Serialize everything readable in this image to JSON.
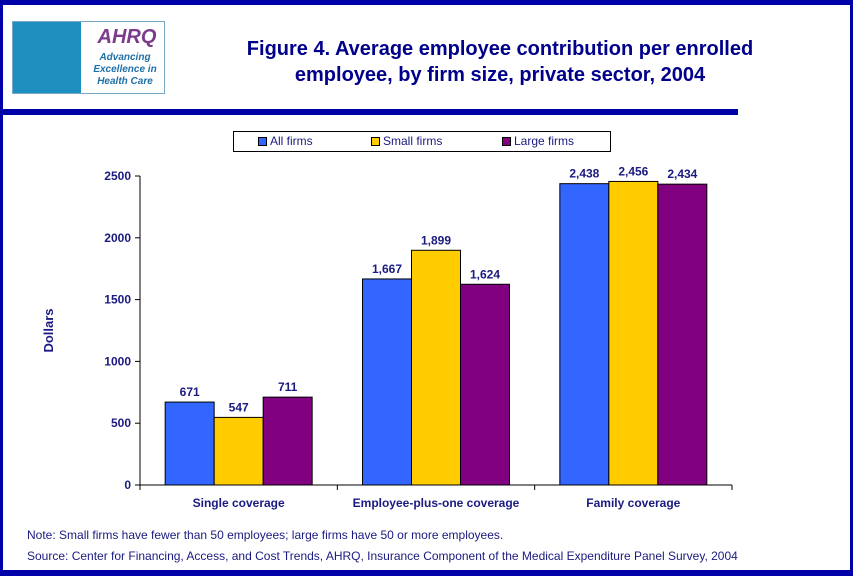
{
  "header": {
    "title_line1": "Figure 4. Average employee contribution per enrolled",
    "title_line2": "employee, by firm size, private sector, 2004",
    "logo": {
      "brand": "AHRQ",
      "tagline": "Advancing Excellence in Health Care"
    }
  },
  "chart_data": {
    "type": "bar",
    "title": "Figure 4. Average employee contribution per enrolled employee, by firm size, private sector, 2004",
    "categories": [
      "Single coverage",
      "Employee-plus-one coverage",
      "Family coverage"
    ],
    "series": [
      {
        "name": "All firms",
        "color": "#3366FF",
        "values": [
          671,
          1667,
          2438
        ],
        "labels": [
          "671",
          "1,667",
          "2,438"
        ]
      },
      {
        "name": "Small firms",
        "color": "#FFCC00",
        "values": [
          547,
          1899,
          2456
        ],
        "labels": [
          "547",
          "1,899",
          "2,456"
        ]
      },
      {
        "name": "Large firms",
        "color": "#800080",
        "values": [
          711,
          1624,
          2434
        ],
        "labels": [
          "711",
          "1,624",
          "2,434"
        ]
      }
    ],
    "ylabel": "Dollars",
    "xlabel": "",
    "ylim": [
      0,
      2500
    ],
    "yticks": [
      0,
      500,
      1000,
      1500,
      2000,
      2500
    ],
    "grid": false,
    "legend": "top"
  },
  "notes": {
    "note": "Note: Small firms have fewer than 50 employees; large firms have 50 or more employees.",
    "source": "Source: Center for Financing, Access, and Cost Trends, AHRQ, Insurance Component of the Medical Expenditure Panel Survey, 2004"
  }
}
